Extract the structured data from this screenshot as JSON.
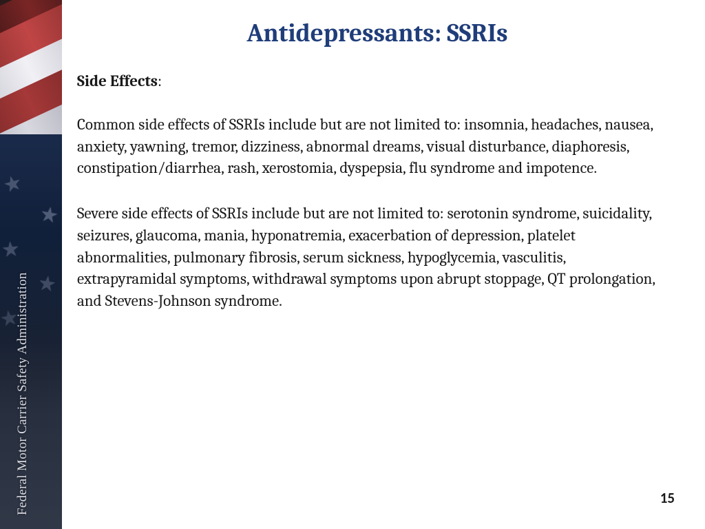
{
  "sidebar": {
    "org_label": "Federal Motor Carrier Safety Administration",
    "text_color": "#d8d8e0",
    "flag_red": "#a53838",
    "flag_white": "#e8e8ee",
    "flag_blue": "#1a2a4a"
  },
  "slide": {
    "title": "Antidepressants: SSRIs",
    "title_color": "#1f3d7a",
    "subheading": "Side Effects",
    "paragraph1": "Common side effects of SSRIs include but are not limited to: insomnia, headaches, nausea, anxiety, yawning, tremor, dizziness, abnormal dreams, visual disturbance, diaphoresis, constipation/diarrhea, rash, xerostomia, dyspepsia, flu syndrome and impotence.",
    "paragraph2": "Severe side effects of SSRIs include but are not limited to: serotonin syndrome, suicidality, seizures, glaucoma, mania,  hyponatremia, exacerbation of depression, platelet abnormalities, pulmonary fibrosis, serum sickness, hypoglycemia, vasculitis, extrapyramidal symptoms, withdrawal symptoms upon abrupt stoppage, QT prolongation, and Stevens-Johnson syndrome.",
    "page_number": "15",
    "body_color": "#1a1a1a",
    "background": "#ffffff",
    "title_fontsize": 37,
    "body_fontsize": 23
  }
}
